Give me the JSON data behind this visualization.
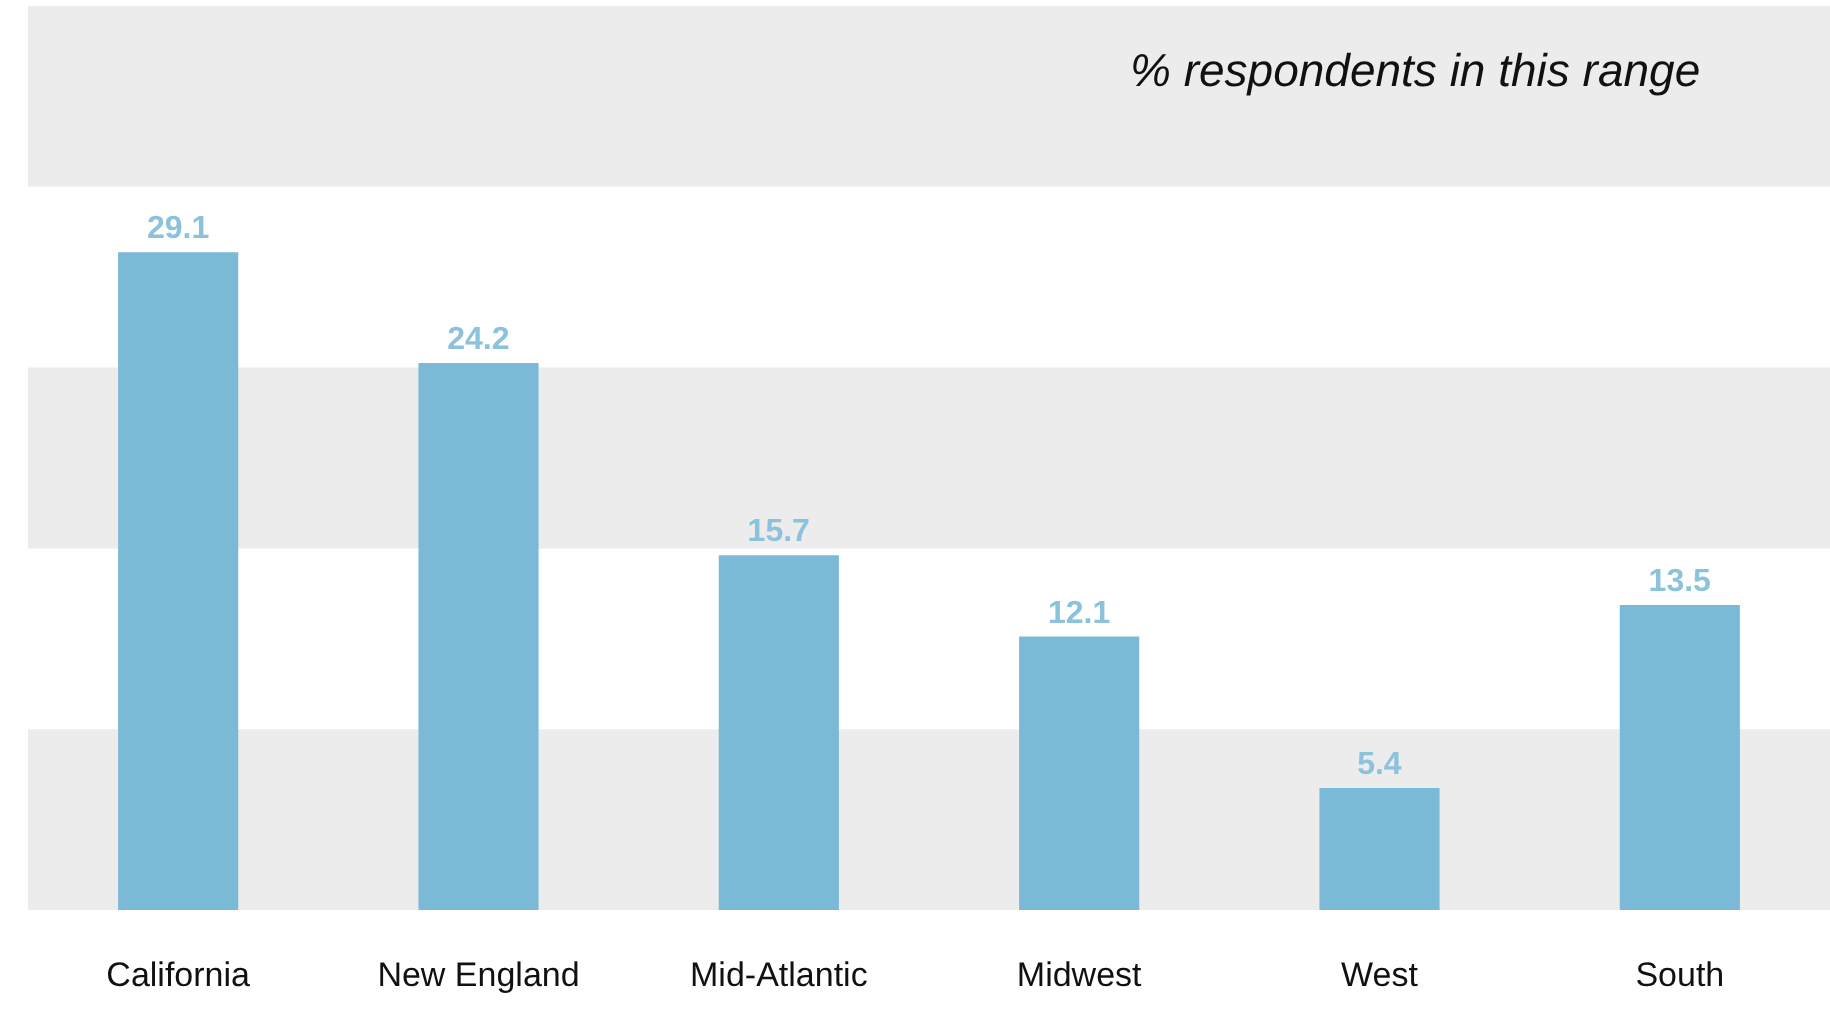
{
  "chart_data": {
    "type": "bar",
    "categories": [
      "California",
      "New England",
      "Mid-Atlantic",
      "Midwest",
      "West",
      "South"
    ],
    "values": [
      29.1,
      24.2,
      15.7,
      12.1,
      5.4,
      13.5
    ],
    "color": "#7bbad6",
    "data_labels": true,
    "ylim": [
      0,
      40
    ],
    "tick_labels": "x",
    "bands": [
      {
        "axis": "y",
        "from": 0,
        "to": 8,
        "color": "#ececec"
      },
      {
        "axis": "y",
        "from": 16,
        "to": 24,
        "color": "#ececec"
      },
      {
        "axis": "y",
        "from": 32,
        "to": 40,
        "color": "#ececec"
      }
    ],
    "annotations": [
      "% respondents in this range"
    ]
  }
}
